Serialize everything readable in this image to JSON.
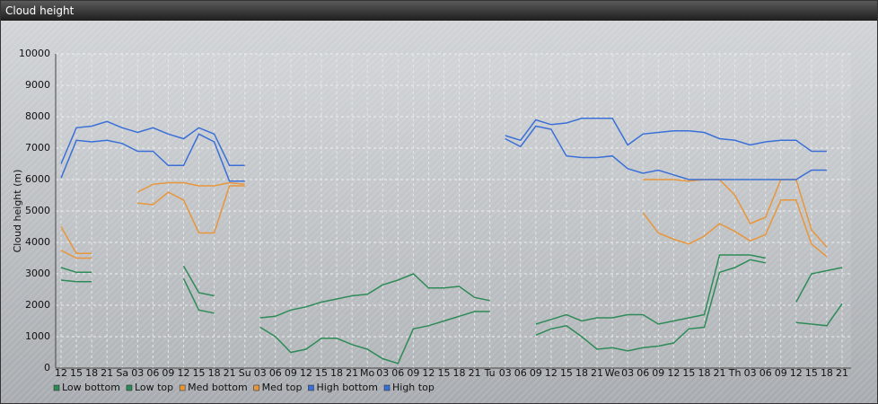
{
  "chart_data": {
    "type": "line",
    "title": "Cloud height",
    "y_label": "Cloud height (m)",
    "categories": [
      "12",
      "15",
      "18",
      "21",
      "Sa",
      "03",
      "06",
      "09",
      "12",
      "15",
      "18",
      "21",
      "Su",
      "03",
      "06",
      "09",
      "12",
      "15",
      "18",
      "21",
      "Mo",
      "03",
      "06",
      "09",
      "12",
      "15",
      "18",
      "21",
      "Tu",
      "03",
      "06",
      "09",
      "12",
      "15",
      "18",
      "21",
      "We",
      "03",
      "06",
      "09",
      "12",
      "15",
      "18",
      "21",
      "Th",
      "03",
      "06",
      "09",
      "12",
      "15",
      "18",
      "21"
    ],
    "ylim": [
      0,
      10000
    ],
    "yticks": [
      0,
      1000,
      2000,
      3000,
      4000,
      5000,
      6000,
      7000,
      8000,
      9000,
      10000
    ],
    "grid": true,
    "legend": "bottom",
    "series": [
      {
        "name": "Low bottom",
        "color": "#2e8b57",
        "values": [
          2800,
          2750,
          2750,
          null,
          null,
          null,
          null,
          null,
          2850,
          1850,
          1750,
          null,
          null,
          1300,
          1000,
          500,
          600,
          950,
          950,
          750,
          600,
          300,
          150,
          1250,
          1350,
          1500,
          1650,
          1800,
          1800,
          null,
          null,
          1050,
          1250,
          1350,
          1000,
          600,
          650,
          550,
          650,
          700,
          800,
          1250,
          1300,
          3050,
          3200,
          3450,
          3350,
          null,
          1450,
          1400,
          1350,
          2050
        ]
      },
      {
        "name": "Low top",
        "color": "#2e8b57",
        "values": [
          3200,
          3050,
          3050,
          null,
          null,
          null,
          null,
          null,
          3250,
          2400,
          2300,
          null,
          null,
          1600,
          1650,
          1850,
          1950,
          2100,
          2200,
          2300,
          2350,
          2650,
          2800,
          3000,
          2550,
          2550,
          2600,
          2250,
          2150,
          null,
          null,
          1400,
          1550,
          1700,
          1500,
          1600,
          1600,
          1700,
          1700,
          1400,
          1500,
          1600,
          1700,
          3600,
          3600,
          3600,
          3500,
          null,
          2100,
          3000,
          3100,
          3200
        ]
      },
      {
        "name": "Med bottom",
        "color": "#e8963c",
        "values": [
          3750,
          3500,
          3500,
          null,
          null,
          5250,
          5200,
          5600,
          5350,
          4300,
          4300,
          5800,
          5800,
          null,
          null,
          null,
          null,
          null,
          null,
          null,
          null,
          null,
          null,
          null,
          null,
          null,
          null,
          null,
          null,
          null,
          null,
          null,
          null,
          null,
          null,
          null,
          null,
          null,
          4950,
          4300,
          4100,
          3950,
          4200,
          4600,
          4350,
          4050,
          4250,
          5350,
          5350,
          3950,
          3550,
          null
        ]
      },
      {
        "name": "Med top",
        "color": "#e8963c",
        "values": [
          4500,
          3650,
          3650,
          null,
          null,
          5600,
          5850,
          5900,
          5900,
          5800,
          5800,
          5900,
          5850,
          null,
          null,
          null,
          null,
          null,
          null,
          null,
          null,
          null,
          null,
          null,
          null,
          null,
          null,
          null,
          null,
          null,
          null,
          null,
          null,
          null,
          null,
          null,
          null,
          null,
          6000,
          6000,
          6000,
          5950,
          6000,
          6000,
          5500,
          4600,
          4800,
          6000,
          6000,
          4400,
          3850,
          null
        ]
      },
      {
        "name": "High bottom",
        "color": "#3a6fd8",
        "values": [
          6050,
          7250,
          7200,
          7250,
          7150,
          6900,
          6900,
          6450,
          6450,
          7450,
          7200,
          5950,
          5950,
          null,
          null,
          null,
          null,
          null,
          null,
          null,
          null,
          null,
          null,
          null,
          null,
          null,
          null,
          null,
          null,
          7300,
          7050,
          7700,
          7600,
          6750,
          6700,
          6700,
          6750,
          6350,
          6200,
          6300,
          6150,
          6000,
          6000,
          6000,
          6000,
          6000,
          6000,
          6000,
          6000,
          6300,
          6300,
          null
        ]
      },
      {
        "name": "High top",
        "color": "#3a6fd8",
        "values": [
          6500,
          7650,
          7700,
          7850,
          7650,
          7500,
          7650,
          7450,
          7300,
          7650,
          7450,
          6450,
          6450,
          null,
          null,
          null,
          null,
          null,
          null,
          null,
          null,
          null,
          null,
          null,
          null,
          null,
          null,
          null,
          null,
          7400,
          7250,
          7900,
          7750,
          7800,
          7950,
          7950,
          7950,
          7100,
          7450,
          7500,
          7550,
          7550,
          7500,
          7300,
          7250,
          7100,
          7200,
          7250,
          7250,
          6900,
          6900,
          null
        ]
      }
    ]
  }
}
